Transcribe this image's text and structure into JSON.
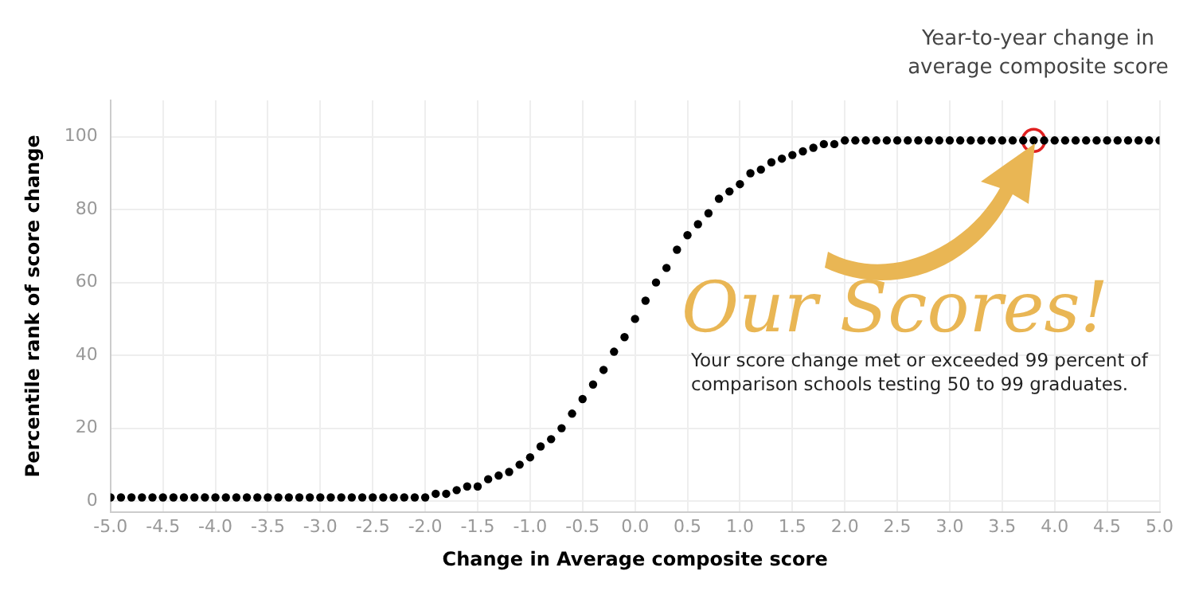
{
  "chart_data": {
    "type": "scatter",
    "xlabel": "Change in Average composite score",
    "ylabel": "Percentile rank of score change",
    "x": [
      -5,
      -4.9,
      -4.8,
      -4.7,
      -4.6,
      -4.5,
      -4.4,
      -4.3,
      -4.2,
      -4.1,
      -4,
      -3.9,
      -3.8,
      -3.7,
      -3.6,
      -3.5,
      -3.4,
      -3.3,
      -3.2,
      -3.1,
      -3,
      -2.9,
      -2.8,
      -2.7,
      -2.6,
      -2.5,
      -2.4,
      -2.3,
      -2.2,
      -2.1,
      -2,
      -1.9,
      -1.8,
      -1.7,
      -1.6,
      -1.5,
      -1.4,
      -1.3,
      -1.2,
      -1.1,
      -1,
      -0.9,
      -0.8,
      -0.7,
      -0.6,
      -0.5,
      -0.4,
      -0.3,
      -0.2,
      -0.1,
      0,
      0.1,
      0.2,
      0.3,
      0.4,
      0.5,
      0.6,
      0.7,
      0.8,
      0.9,
      1,
      1.1,
      1.2,
      1.3,
      1.4,
      1.5,
      1.6,
      1.7,
      1.8,
      1.9,
      2,
      2.1,
      2.2,
      2.3,
      2.4,
      2.5,
      2.6,
      2.7,
      2.8,
      2.9,
      3,
      3.1,
      3.2,
      3.3,
      3.4,
      3.5,
      3.6,
      3.7,
      3.8,
      3.9,
      4,
      4.1,
      4.2,
      4.3,
      4.4,
      4.5,
      4.6,
      4.7,
      4.8,
      4.9,
      5
    ],
    "series": [
      {
        "color": "#000000",
        "values": [
          1,
          1,
          1,
          1,
          1,
          1,
          1,
          1,
          1,
          1,
          1,
          1,
          1,
          1,
          1,
          1,
          1,
          1,
          1,
          1,
          1,
          1,
          1,
          1,
          1,
          1,
          1,
          1,
          1,
          1,
          1,
          2,
          2,
          3,
          4,
          4,
          6,
          7,
          8,
          10,
          12,
          15,
          17,
          20,
          24,
          28,
          32,
          36,
          41,
          45,
          50,
          55,
          60,
          64,
          69,
          73,
          76,
          79,
          83,
          85,
          87,
          90,
          91,
          93,
          94,
          95,
          96,
          97,
          98,
          98,
          99,
          99,
          99,
          99,
          99,
          99,
          99,
          99,
          99,
          99,
          99,
          99,
          99,
          99,
          99,
          99,
          99,
          99,
          99,
          99,
          99,
          99,
          99,
          99,
          99,
          99,
          99,
          99,
          99,
          99,
          99
        ]
      },
      {
        "color": "#e02020",
        "x": [
          3.8
        ],
        "values": [
          99
        ]
      }
    ],
    "xlim": [
      -5,
      5
    ],
    "xticks": [
      {
        "value": -5,
        "label": "-5.0"
      },
      {
        "value": -4.5,
        "label": "-4.5"
      },
      {
        "value": -4,
        "label": "-4.0"
      },
      {
        "value": -3.5,
        "label": "-3.5"
      },
      {
        "value": -3,
        "label": "-3.0"
      },
      {
        "value": -2.5,
        "label": "-2.5"
      },
      {
        "value": -2,
        "label": "-2.0"
      },
      {
        "value": -1.5,
        "label": "-1.5"
      },
      {
        "value": -1,
        "label": "-1.0"
      },
      {
        "value": -0.5,
        "label": "-0.5"
      },
      {
        "value": 0,
        "label": "0.0"
      },
      {
        "value": 0.5,
        "label": "0.5"
      },
      {
        "value": 1,
        "label": "1.0"
      },
      {
        "value": 1.5,
        "label": "1.5"
      },
      {
        "value": 2,
        "label": "2.0"
      },
      {
        "value": 2.5,
        "label": "2.5"
      },
      {
        "value": 3,
        "label": "3.0"
      },
      {
        "value": 3.5,
        "label": "3.5"
      },
      {
        "value": 4,
        "label": "4.0"
      },
      {
        "value": 4.5,
        "label": "4.5"
      },
      {
        "value": 5,
        "label": "5.0"
      }
    ],
    "ylim": [
      -3,
      110
    ],
    "yticks": [
      0,
      20,
      40,
      60,
      80,
      100
    ],
    "grid": true,
    "legend": false,
    "marker": "circle",
    "annotations": [
      "Year-to-year change in average composite score",
      "Our Scores!",
      "Your score change met or exceeded 99 percent of comparison schools testing 50 to 99 graduates."
    ]
  }
}
